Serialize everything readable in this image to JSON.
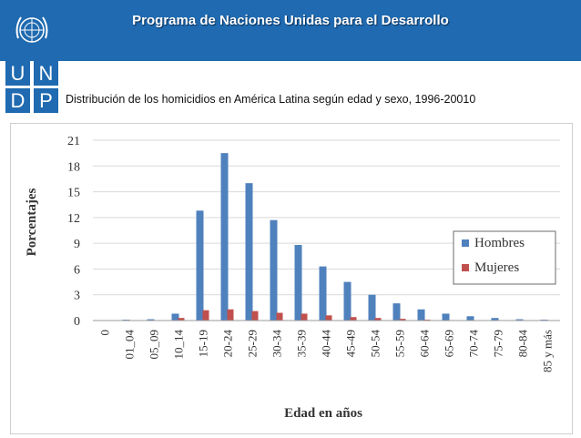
{
  "header": {
    "title": "Programa de Naciones Unidas para el Desarrollo",
    "logo_letters": [
      "U",
      "N",
      "D",
      "P"
    ]
  },
  "subtitle": "Distribución de los homicidios en América Latina según edad y sexo, 1996-20010",
  "colors": {
    "banner": "#1f6ab0",
    "hombres": "#4f81bd",
    "mujeres": "#c0504d",
    "grid": "#d9d9d9"
  },
  "chart_data": {
    "type": "bar",
    "title": "",
    "xlabel": "Edad en años",
    "ylabel": "Porcentajes",
    "ylim": [
      0,
      21
    ],
    "yticks": [
      0,
      3,
      6,
      9,
      12,
      15,
      18,
      21
    ],
    "grid": true,
    "legend_position": "right",
    "categories": [
      "0",
      "01_04",
      "05_09",
      "10_14",
      "15-19",
      "20-24",
      "25-29",
      "30-34",
      "35-39",
      "40-44",
      "45-49",
      "50-54",
      "55-59",
      "60-64",
      "65-69",
      "70-74",
      "75-79",
      "80-84",
      "85 y más"
    ],
    "series": [
      {
        "name": "Hombres",
        "values": [
          0.05,
          0.1,
          0.15,
          0.8,
          12.8,
          19.5,
          16.0,
          11.7,
          8.8,
          6.3,
          4.5,
          3.0,
          2.0,
          1.3,
          0.8,
          0.5,
          0.3,
          0.15,
          0.1
        ]
      },
      {
        "name": "Mujeres",
        "values": [
          0.02,
          0.05,
          0.05,
          0.3,
          1.2,
          1.3,
          1.1,
          0.9,
          0.8,
          0.6,
          0.4,
          0.3,
          0.2,
          0.1,
          0.05,
          0.03,
          0.02,
          0.01,
          0.01
        ]
      }
    ]
  }
}
